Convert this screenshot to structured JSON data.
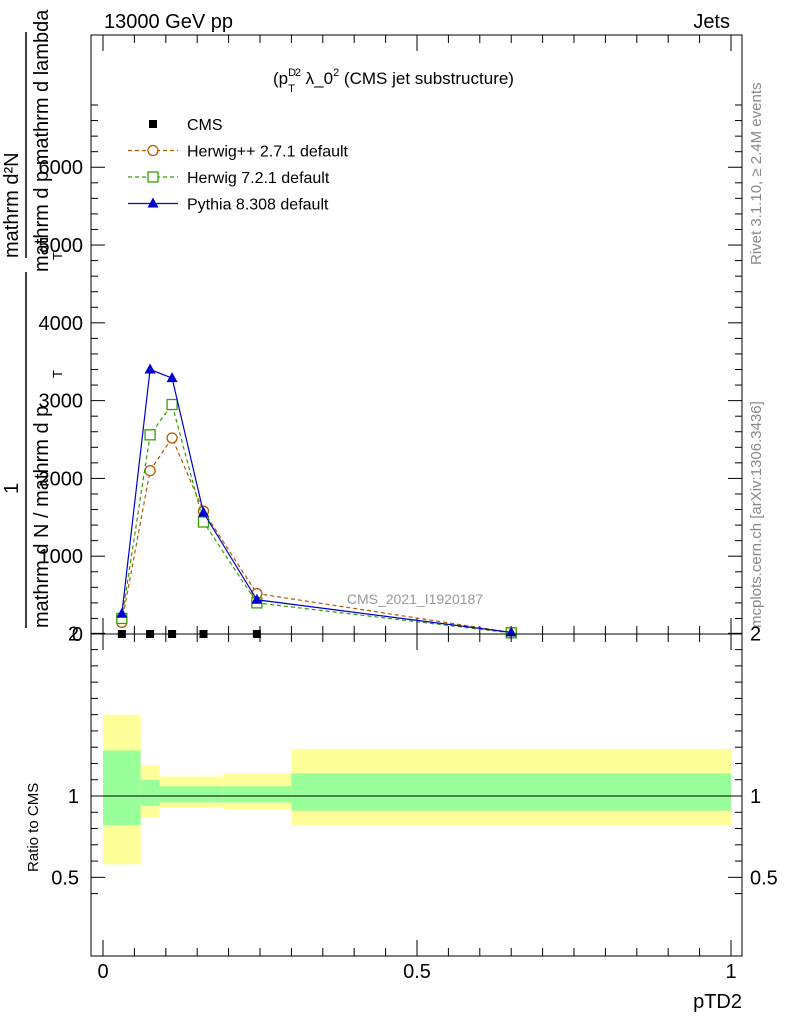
{
  "header": {
    "left": "13000 GeV pp",
    "right": "Jets"
  },
  "side_texts": {
    "rivet": "Rivet 3.1.10, ≥ 2.4M events",
    "mcplots": "mcplots.cern.ch [arXiv:1306.3436]"
  },
  "main": {
    "title_prefix": "(p",
    "title_sup_d": "D",
    "title_sub_t": "T",
    "title_sup_2": "2",
    "title_mid": " λ_0",
    "title_suffix": " (CMS jet substructure)",
    "ylabel_upper_num": "mathrm d²N",
    "ylabel_upper_den": "mathrm d p  mathrm d lambda",
    "ylabel_upper_sub": "T",
    "ylabel_lower_num": "1",
    "ylabel_lower_den": "mathrm d N / mathrm d p",
    "ylabel_lower_sub": "T",
    "watermark": "CMS_2021_I1920187"
  },
  "ratio": {
    "ylabel": "Ratio to CMS"
  },
  "xaxis": {
    "label": "pTD2"
  },
  "colors": {
    "herwigpp": "#b35900",
    "herwig7": "#33a000",
    "pythia": "#0000cc",
    "band_outer": "#ffff99",
    "band_inner": "#99ff99"
  },
  "chart_data": {
    "type": "line",
    "xlabel": "pTD2",
    "main_ylim": [
      0,
      7700
    ],
    "main_yticks": [
      0,
      1000,
      2000,
      3000,
      4000,
      5000,
      6000
    ],
    "main_ytick_labels": [
      "0",
      "1000",
      "2000",
      "3000",
      "4000",
      "5000",
      "6000"
    ],
    "xlim": [
      0,
      1
    ],
    "xticks": [
      0,
      0.5,
      1
    ],
    "xtick_labels": [
      "0",
      "0.5",
      "1"
    ],
    "ratio_ylim": [
      0.35,
      2.3
    ],
    "ratio_yticks": [
      0.5,
      1,
      2
    ],
    "ratio_ytick_labels": [
      "0.5",
      "1",
      "2"
    ],
    "series": [
      {
        "name": "CMS",
        "marker": "square-filled",
        "x": [
          0.03,
          0.075,
          0.11,
          0.16,
          0.245,
          0.65
        ],
        "y": [
          0,
          0,
          0,
          0,
          0,
          0
        ]
      },
      {
        "name": "Herwig++ 2.7.1 default",
        "marker": "circle-open",
        "x": [
          0.03,
          0.075,
          0.11,
          0.16,
          0.245,
          0.65
        ],
        "y": [
          150,
          2100,
          2520,
          1580,
          520,
          20
        ]
      },
      {
        "name": "Herwig 7.2.1 default",
        "marker": "square-open",
        "x": [
          0.03,
          0.075,
          0.11,
          0.16,
          0.245,
          0.65
        ],
        "y": [
          200,
          2560,
          2950,
          1440,
          400,
          15
        ]
      },
      {
        "name": "Pythia 8.308 default",
        "marker": "triangle-filled",
        "x": [
          0.03,
          0.075,
          0.11,
          0.16,
          0.245,
          0.65
        ],
        "y": [
          260,
          3400,
          3290,
          1560,
          440,
          20
        ]
      }
    ],
    "ratio_bands": [
      {
        "x0": 0.0,
        "x1": 0.06,
        "outer": [
          0.58,
          1.5
        ],
        "inner": [
          0.82,
          1.28
        ]
      },
      {
        "x0": 0.06,
        "x1": 0.09,
        "outer": [
          0.87,
          1.19
        ],
        "inner": [
          0.94,
          1.1
        ]
      },
      {
        "x0": 0.09,
        "x1": 0.19,
        "outer": [
          0.93,
          1.12
        ],
        "inner": [
          0.96,
          1.06
        ]
      },
      {
        "x0": 0.19,
        "x1": 0.3,
        "outer": [
          0.92,
          1.14
        ],
        "inner": [
          0.96,
          1.06
        ]
      },
      {
        "x0": 0.3,
        "x1": 1.0,
        "outer": [
          0.82,
          1.29
        ],
        "inner": [
          0.91,
          1.14
        ]
      }
    ]
  }
}
